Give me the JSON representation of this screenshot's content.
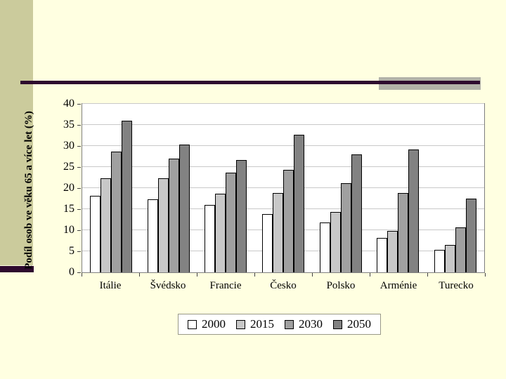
{
  "slide": {
    "background_color": "#ffffe1",
    "sidebar_color": "#cbcb9c",
    "rule_color": "#2e0a2e",
    "accent_rect_color": "#b2b2a8"
  },
  "chart_data": {
    "type": "bar",
    "title": "",
    "xlabel": "",
    "ylabel": "Podíl osob ve věku 65 a více let (%)",
    "ylim": [
      0,
      40
    ],
    "y_ticks": [
      0,
      5,
      10,
      15,
      20,
      25,
      30,
      35,
      40
    ],
    "grid": true,
    "legend_position": "bottom",
    "plot_background": "#ffffff",
    "categories": [
      "Itálie",
      "Švédsko",
      "Francie",
      "Česko",
      "Polsko",
      "Arménie",
      "Turecko"
    ],
    "series": [
      {
        "name": "2000",
        "color": "#ffffff",
        "values": [
          18.1,
          17.4,
          16.0,
          13.8,
          11.8,
          8.2,
          5.3
        ]
      },
      {
        "name": "2015",
        "color": "#c8c8c8",
        "values": [
          22.3,
          22.3,
          18.6,
          18.8,
          14.4,
          9.9,
          6.5
        ]
      },
      {
        "name": "2030",
        "color": "#a0a0a0",
        "values": [
          28.6,
          27.0,
          23.7,
          24.4,
          21.2,
          18.9,
          10.6
        ]
      },
      {
        "name": "2050",
        "color": "#828282",
        "values": [
          36.0,
          30.4,
          26.7,
          32.7,
          28.0,
          29.2,
          17.5
        ]
      }
    ]
  }
}
